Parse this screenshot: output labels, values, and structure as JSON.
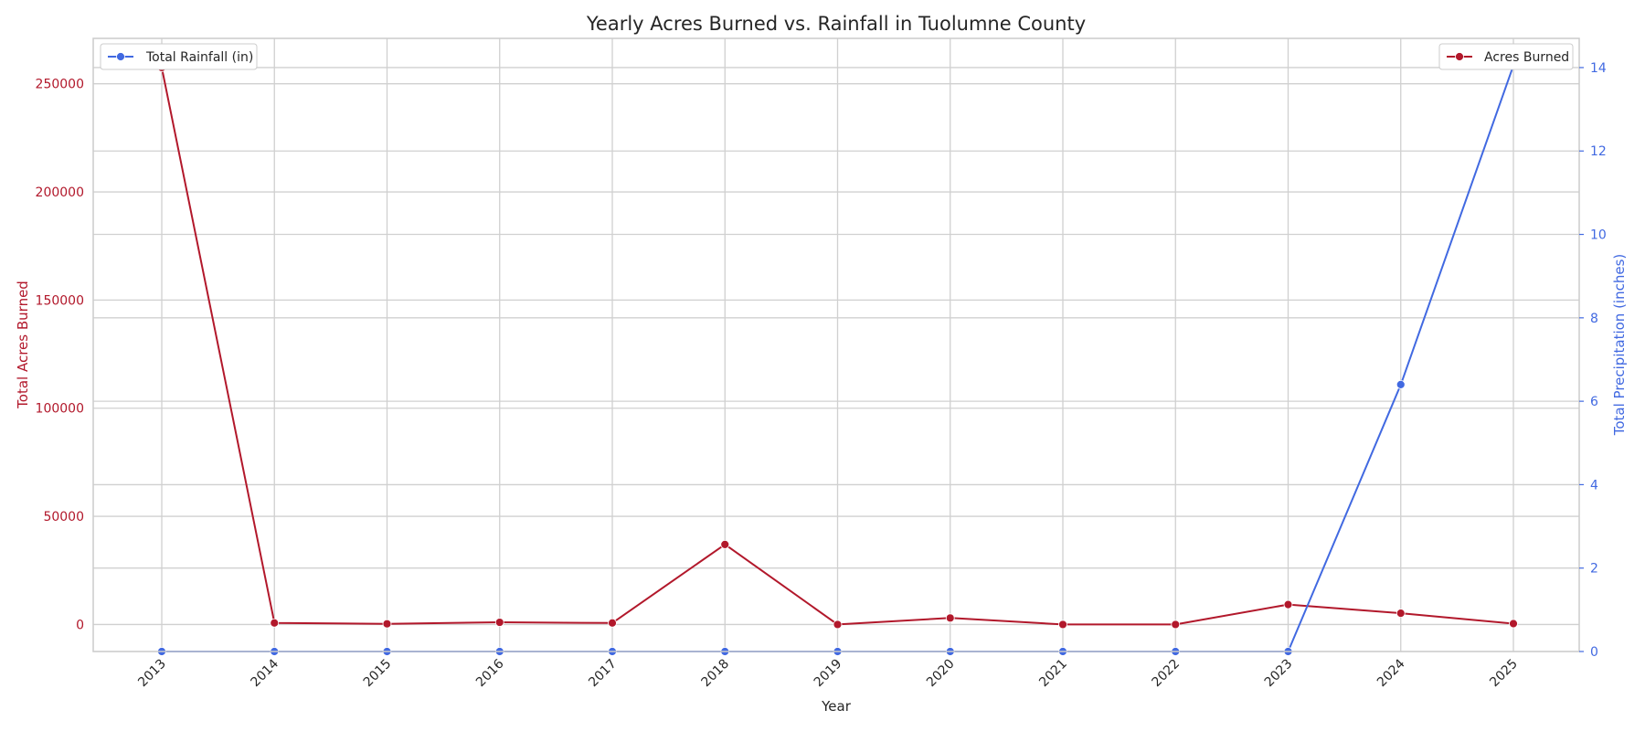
{
  "chart_data": {
    "type": "line",
    "title": "Yearly Acres Burned vs. Rainfall in Tuolumne County",
    "xlabel": "Year",
    "ylabel_left": "Total Acres Burned",
    "ylabel_right": "Total Precipitation (inches)",
    "x": [
      "2013",
      "2014",
      "2015",
      "2016",
      "2017",
      "2018",
      "2019",
      "2020",
      "2021",
      "2022",
      "2023",
      "2024",
      "2025"
    ],
    "y_left_lim": [
      -12500,
      271000
    ],
    "y_right_lim": [
      0,
      14.7
    ],
    "y_left_ticks": [
      0,
      50000,
      100000,
      150000,
      200000,
      250000
    ],
    "y_right_ticks": [
      0,
      2,
      4,
      6,
      8,
      10,
      12,
      14
    ],
    "grid": true,
    "series": [
      {
        "name": "Acres Burned",
        "axis": "left",
        "color": "#b2182b",
        "values": [
          257500,
          700,
          300,
          1000,
          700,
          37000,
          0,
          3000,
          0,
          0,
          9200,
          5200,
          400
        ]
      },
      {
        "name": "Total Rainfall (in)",
        "axis": "right",
        "color": "#4169e1",
        "values": [
          0,
          0,
          0,
          0,
          0,
          0,
          0,
          0,
          0,
          0,
          0,
          6.4,
          14.05
        ]
      }
    ],
    "legends": [
      {
        "series": "Total Rainfall (in)",
        "position": "upper-left"
      },
      {
        "series": "Acres Burned",
        "position": "upper-right"
      }
    ]
  }
}
